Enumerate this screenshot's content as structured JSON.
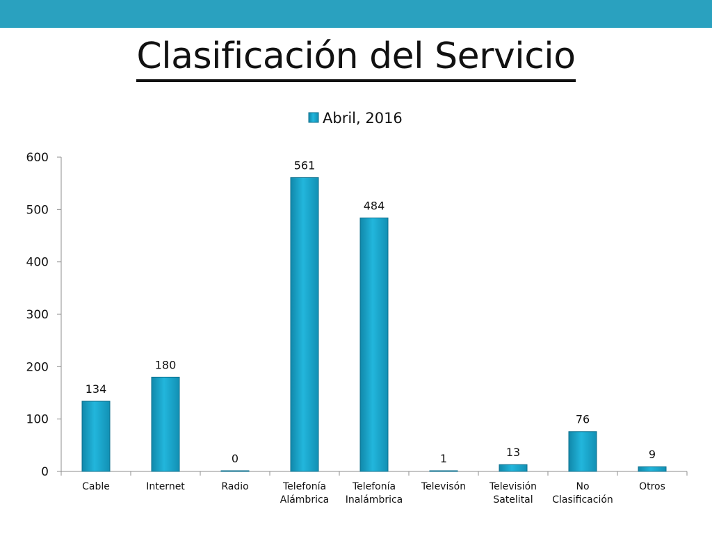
{
  "slide": {
    "title": "Clasificación del Servicio",
    "accent_color": "#2aa1bf"
  },
  "chart_data": {
    "type": "bar",
    "categories": [
      [
        "Cable"
      ],
      [
        "Internet"
      ],
      [
        "Radio"
      ],
      [
        "Telefonía",
        "Alámbrica"
      ],
      [
        "Telefonía",
        "Inalámbrica"
      ],
      [
        "Televisón"
      ],
      [
        "Televisión",
        "Satelital"
      ],
      [
        "No",
        "Clasificación"
      ],
      [
        "Otros"
      ]
    ],
    "series": [
      {
        "name": "Abril, 2016",
        "values": [
          134,
          180,
          0,
          561,
          484,
          1,
          13,
          76,
          9
        ],
        "color": "#1aa6cc"
      }
    ],
    "data_labels": [
      "134",
      "180",
      "0",
      "561",
      "484",
      "1",
      "13",
      "76",
      "9"
    ],
    "y_ticks": [
      0,
      100,
      200,
      300,
      400,
      500,
      600
    ],
    "ylim": [
      0,
      600
    ],
    "legend_position": "top-center",
    "grid": false
  }
}
